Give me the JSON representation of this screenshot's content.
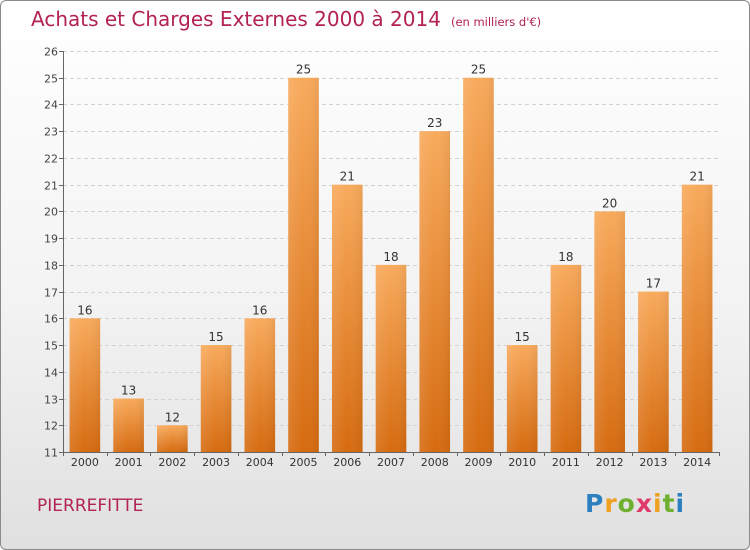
{
  "header": {
    "title": "Achats et Charges Externes 2000 à 2014",
    "subtitle": "(en milliers d'€)"
  },
  "footer": {
    "city": "PIERREFITTE",
    "logo": "Proxiti"
  },
  "colors": {
    "title": "#b22252",
    "bar_light": "#f7a85a",
    "bar_dark": "#d86d12"
  },
  "chart_data": {
    "type": "bar",
    "title": "Achats et Charges Externes 2000 à 2014",
    "subtitle": "(en milliers d'€)",
    "xlabel": "",
    "ylabel": "",
    "categories": [
      "2000",
      "2001",
      "2002",
      "2003",
      "2004",
      "2005",
      "2006",
      "2007",
      "2008",
      "2009",
      "2010",
      "2011",
      "2012",
      "2013",
      "2014"
    ],
    "values": [
      16,
      13,
      12,
      15,
      16,
      25,
      21,
      18,
      23,
      25,
      15,
      18,
      20,
      17,
      21
    ],
    "ylim": [
      11,
      26
    ],
    "yticks": [
      11,
      12,
      13,
      14,
      15,
      16,
      17,
      18,
      19,
      20,
      21,
      22,
      23,
      24,
      25,
      26
    ],
    "grid": true,
    "data_labels": true
  }
}
